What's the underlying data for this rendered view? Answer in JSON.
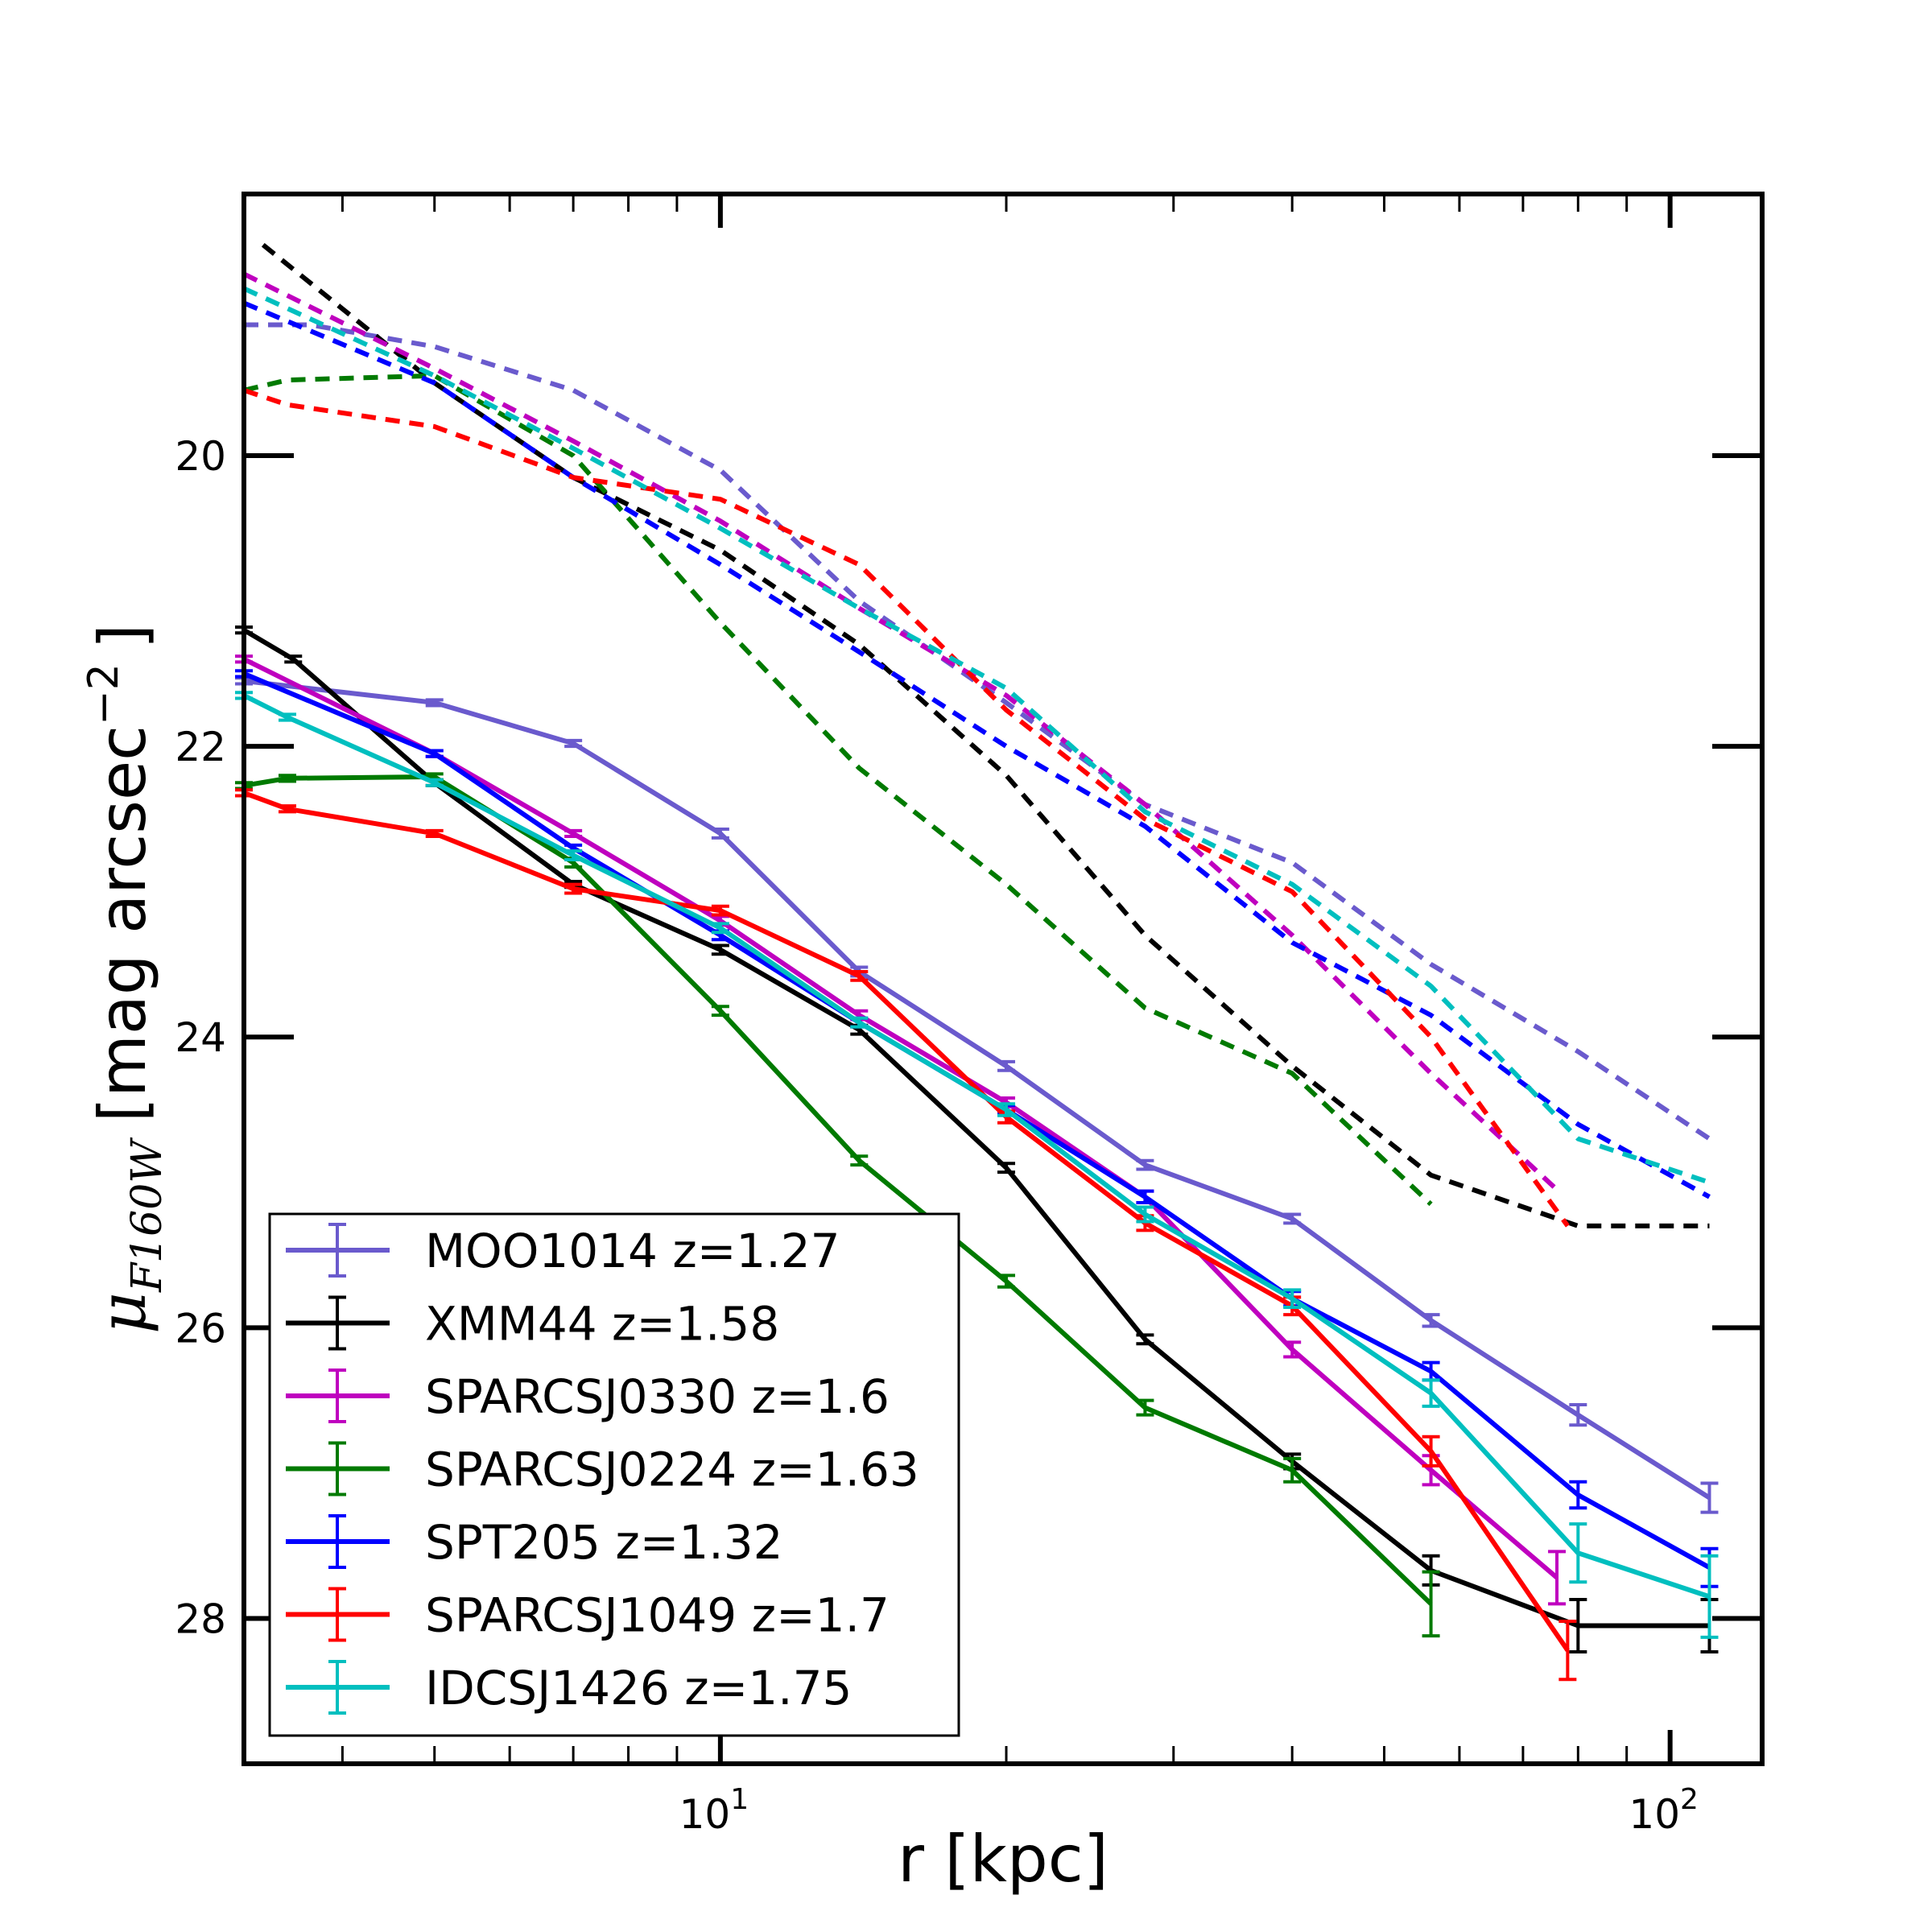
{
  "chart_data": {
    "type": "line",
    "xscale": "log",
    "xlabel": "r [kpc]",
    "ylabel": {
      "symbol": "μ",
      "subscript": "F160W",
      "unit_prefix": "[mag arcsec",
      "unit_exponent": "−2",
      "unit_suffix": "]"
    },
    "xlim": [
      3.15,
      125
    ],
    "ylim": [
      29.0,
      18.2
    ],
    "y_inverted": true,
    "grid": false,
    "legend_position": "lower-left",
    "xticks": [
      {
        "value": 10,
        "base": "10",
        "exp": "1"
      },
      {
        "value": 100,
        "base": "10",
        "exp": "2"
      }
    ],
    "yticks": [
      {
        "value": 20,
        "label": "20"
      },
      {
        "value": 22,
        "label": "22"
      },
      {
        "value": 24,
        "label": "24"
      },
      {
        "value": 26,
        "label": "26"
      },
      {
        "value": 28,
        "label": "28"
      }
    ],
    "series": [
      {
        "name": "MOO1014 z=1.27",
        "color": "#6a5acd",
        "x": [
          3.15,
          5.0,
          7.0,
          10.0,
          14.0,
          20.0,
          28.0,
          40.0,
          56.0,
          80.0,
          110.0
        ],
        "y": [
          21.55,
          21.7,
          21.98,
          22.6,
          23.55,
          24.2,
          24.88,
          25.25,
          25.95,
          26.6,
          27.17
        ],
        "err": [
          0.02,
          0.02,
          0.02,
          0.03,
          0.03,
          0.03,
          0.03,
          0.03,
          0.04,
          0.07,
          0.1
        ],
        "profile_x": [
          3.15,
          3.7,
          5.0,
          7.0,
          10.0,
          14.0,
          20.0,
          28.0,
          40.0,
          56.0,
          80.0,
          110.0
        ],
        "profile_y": [
          19.1,
          19.1,
          19.25,
          19.55,
          20.1,
          21.0,
          21.7,
          22.4,
          22.8,
          23.5,
          24.1,
          24.7
        ]
      },
      {
        "name": "XMM44 z=1.58",
        "color": "#000000",
        "x": [
          3.15,
          3.55,
          5.0,
          7.0,
          10.0,
          14.0,
          20.0,
          28.0,
          40.0,
          56.0,
          80.0,
          110.0
        ],
        "y": [
          21.2,
          21.4,
          22.25,
          22.95,
          23.4,
          23.95,
          24.9,
          26.08,
          26.92,
          27.67,
          28.05,
          28.05
        ],
        "err": [
          0.02,
          0.02,
          0.02,
          0.02,
          0.03,
          0.03,
          0.03,
          0.03,
          0.05,
          0.1,
          0.18,
          0.18
        ],
        "profile_x": [
          3.3,
          5.0,
          7.0,
          10.0,
          14.0,
          20.0,
          28.0,
          40.0,
          56.0,
          80.0,
          110.0
        ],
        "profile_y": [
          18.55,
          19.5,
          20.15,
          20.65,
          21.3,
          22.2,
          23.3,
          24.2,
          24.95,
          25.3,
          25.3
        ]
      },
      {
        "name": "SPARCSJ0330 z=1.6",
        "color": "#bf00bf",
        "x": [
          3.15,
          5.0,
          7.0,
          10.0,
          14.0,
          20.0,
          28.0,
          40.0,
          56.0,
          76.0
        ],
        "y": [
          21.4,
          22.05,
          22.6,
          23.2,
          23.85,
          24.45,
          25.1,
          26.15,
          26.98,
          27.72
        ],
        "err": [
          0.02,
          0.02,
          0.02,
          0.03,
          0.03,
          0.03,
          0.04,
          0.05,
          0.1,
          0.18
        ],
        "profile_x": [
          3.15,
          5.0,
          7.0,
          10.0,
          14.0,
          20.0,
          28.0,
          40.0,
          56.0,
          76.0
        ],
        "profile_y": [
          18.75,
          19.4,
          19.9,
          20.45,
          21.05,
          21.65,
          22.4,
          23.3,
          24.25,
          25.05
        ]
      },
      {
        "name": "SPARCSJ0224 z=1.63",
        "color": "#007a00",
        "x": [
          3.15,
          3.5,
          5.0,
          7.0,
          10.0,
          14.0,
          20.0,
          28.0,
          40.0,
          56.0
        ],
        "y": [
          22.27,
          22.22,
          22.21,
          22.8,
          23.82,
          24.85,
          25.68,
          26.55,
          26.98,
          27.9
        ],
        "err": [
          0.02,
          0.02,
          0.02,
          0.03,
          0.03,
          0.03,
          0.04,
          0.05,
          0.08,
          0.22
        ],
        "profile_x": [
          3.15,
          3.5,
          5.0,
          7.0,
          10.0,
          14.0,
          20.0,
          28.0,
          40.0,
          56.0
        ],
        "profile_y": [
          19.55,
          19.48,
          19.45,
          20.0,
          21.15,
          22.15,
          22.95,
          23.8,
          24.25,
          25.15
        ]
      },
      {
        "name": "SPT205 z=1.32",
        "color": "#0000ff",
        "x": [
          3.15,
          5.0,
          7.0,
          10.0,
          14.0,
          20.0,
          28.0,
          40.0,
          56.0,
          80.0,
          110.0
        ],
        "y": [
          21.5,
          22.05,
          22.7,
          23.3,
          23.9,
          24.5,
          25.1,
          25.8,
          26.3,
          27.15,
          27.65
        ],
        "err": [
          0.02,
          0.02,
          0.02,
          0.03,
          0.03,
          0.03,
          0.04,
          0.05,
          0.06,
          0.09,
          0.13
        ],
        "profile_x": [
          3.15,
          5.0,
          7.0,
          10.0,
          14.0,
          20.0,
          28.0,
          40.0,
          56.0,
          80.0,
          110.0
        ],
        "profile_y": [
          18.95,
          19.5,
          20.15,
          20.75,
          21.35,
          22.0,
          22.55,
          23.35,
          23.85,
          24.6,
          25.1
        ]
      },
      {
        "name": "SPARCSJ1049 z=1.7",
        "color": "#ff0000",
        "x": [
          3.15,
          3.5,
          5.0,
          7.0,
          10.0,
          14.0,
          20.0,
          28.0,
          40.0,
          56.0,
          78.0
        ],
        "y": [
          22.32,
          22.43,
          22.6,
          22.98,
          23.13,
          23.58,
          24.55,
          25.28,
          25.85,
          26.85,
          28.22
        ],
        "err": [
          0.02,
          0.02,
          0.02,
          0.03,
          0.03,
          0.03,
          0.04,
          0.05,
          0.06,
          0.1,
          0.2
        ],
        "profile_x": [
          3.15,
          3.5,
          5.0,
          7.0,
          10.0,
          14.0,
          20.0,
          28.0,
          40.0,
          56.0,
          78.0
        ],
        "profile_y": [
          19.55,
          19.65,
          19.8,
          20.15,
          20.3,
          20.75,
          21.75,
          22.5,
          23.0,
          24.0,
          25.3
        ]
      },
      {
        "name": "IDCSJ1426 z=1.75",
        "color": "#00bfbf",
        "x": [
          3.15,
          3.5,
          5.0,
          7.0,
          10.0,
          14.0,
          20.0,
          28.0,
          40.0,
          56.0,
          80.0,
          110.0
        ],
        "y": [
          21.65,
          21.8,
          22.25,
          22.75,
          23.25,
          23.9,
          24.5,
          25.22,
          25.8,
          26.45,
          27.55,
          27.85
        ],
        "err": [
          0.02,
          0.02,
          0.02,
          0.03,
          0.03,
          0.03,
          0.04,
          0.05,
          0.06,
          0.09,
          0.2,
          0.28
        ],
        "profile_x": [
          3.15,
          5.0,
          7.0,
          10.0,
          14.0,
          20.0,
          28.0,
          40.0,
          56.0,
          80.0,
          110.0
        ],
        "profile_y": [
          18.85,
          19.45,
          19.95,
          20.5,
          21.05,
          21.6,
          22.45,
          22.95,
          23.65,
          24.7,
          25.0
        ]
      }
    ]
  }
}
